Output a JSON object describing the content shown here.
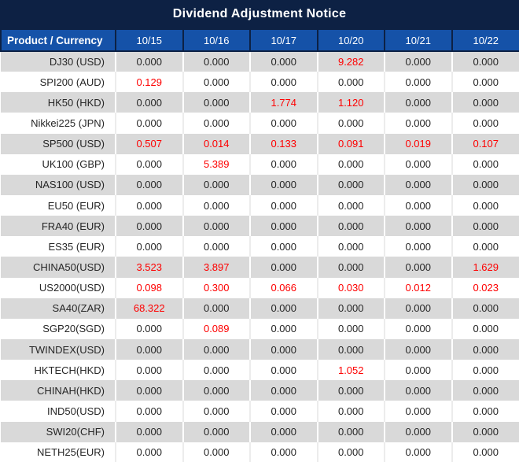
{
  "title": "Dividend Adjustment Notice",
  "header": {
    "product_label": "Product / Currency",
    "dates": [
      "10/15",
      "10/16",
      "10/17",
      "10/20",
      "10/21",
      "10/22"
    ]
  },
  "rows": [
    {
      "product": "DJ30 (USD)",
      "values": [
        "0.000",
        "0.000",
        "0.000",
        "9.282",
        "0.000",
        "0.000"
      ]
    },
    {
      "product": "SPI200 (AUD)",
      "values": [
        "0.129",
        "0.000",
        "0.000",
        "0.000",
        "0.000",
        "0.000"
      ]
    },
    {
      "product": "HK50 (HKD)",
      "values": [
        "0.000",
        "0.000",
        "1.774",
        "1.120",
        "0.000",
        "0.000"
      ]
    },
    {
      "product": "Nikkei225 (JPN)",
      "values": [
        "0.000",
        "0.000",
        "0.000",
        "0.000",
        "0.000",
        "0.000"
      ]
    },
    {
      "product": "SP500 (USD)",
      "values": [
        "0.507",
        "0.014",
        "0.133",
        "0.091",
        "0.019",
        "0.107"
      ]
    },
    {
      "product": "UK100 (GBP)",
      "values": [
        "0.000",
        "5.389",
        "0.000",
        "0.000",
        "0.000",
        "0.000"
      ]
    },
    {
      "product": "NAS100 (USD)",
      "values": [
        "0.000",
        "0.000",
        "0.000",
        "0.000",
        "0.000",
        "0.000"
      ]
    },
    {
      "product": "EU50 (EUR)",
      "values": [
        "0.000",
        "0.000",
        "0.000",
        "0.000",
        "0.000",
        "0.000"
      ]
    },
    {
      "product": "FRA40 (EUR)",
      "values": [
        "0.000",
        "0.000",
        "0.000",
        "0.000",
        "0.000",
        "0.000"
      ]
    },
    {
      "product": "ES35 (EUR)",
      "values": [
        "0.000",
        "0.000",
        "0.000",
        "0.000",
        "0.000",
        "0.000"
      ]
    },
    {
      "product": "CHINA50(USD)",
      "values": [
        "3.523",
        "3.897",
        "0.000",
        "0.000",
        "0.000",
        "1.629"
      ]
    },
    {
      "product": "US2000(USD)",
      "values": [
        "0.098",
        "0.300",
        "0.066",
        "0.030",
        "0.012",
        "0.023"
      ]
    },
    {
      "product": "SA40(ZAR)",
      "values": [
        "68.322",
        "0.000",
        "0.000",
        "0.000",
        "0.000",
        "0.000"
      ]
    },
    {
      "product": "SGP20(SGD)",
      "values": [
        "0.000",
        "0.089",
        "0.000",
        "0.000",
        "0.000",
        "0.000"
      ]
    },
    {
      "product": "TWINDEX(USD)",
      "values": [
        "0.000",
        "0.000",
        "0.000",
        "0.000",
        "0.000",
        "0.000"
      ]
    },
    {
      "product": "HKTECH(HKD)",
      "values": [
        "0.000",
        "0.000",
        "0.000",
        "1.052",
        "0.000",
        "0.000"
      ]
    },
    {
      "product": "CHINAH(HKD)",
      "values": [
        "0.000",
        "0.000",
        "0.000",
        "0.000",
        "0.000",
        "0.000"
      ]
    },
    {
      "product": "IND50(USD)",
      "values": [
        "0.000",
        "0.000",
        "0.000",
        "0.000",
        "0.000",
        "0.000"
      ]
    },
    {
      "product": "SWI20(CHF)",
      "values": [
        "0.000",
        "0.000",
        "0.000",
        "0.000",
        "0.000",
        "0.000"
      ]
    },
    {
      "product": "NETH25(EUR)",
      "values": [
        "0.000",
        "0.000",
        "0.000",
        "0.000",
        "0.000",
        "0.000"
      ]
    }
  ],
  "colors": {
    "title_bg": "#0D2144",
    "header_bg": "#1552A8",
    "header_border": "#0D2144",
    "row_alt_bg": "#D9D9D9",
    "row_bg": "#FFFFFF",
    "value_red": "#FE0000",
    "text_dark": "#262626"
  },
  "chart_data": {
    "type": "table",
    "title": "Dividend Adjustment Notice",
    "columns": [
      "Product / Currency",
      "10/15",
      "10/16",
      "10/17",
      "10/20",
      "10/21",
      "10/22"
    ],
    "highlight_rule": "non-zero values shown in red"
  }
}
